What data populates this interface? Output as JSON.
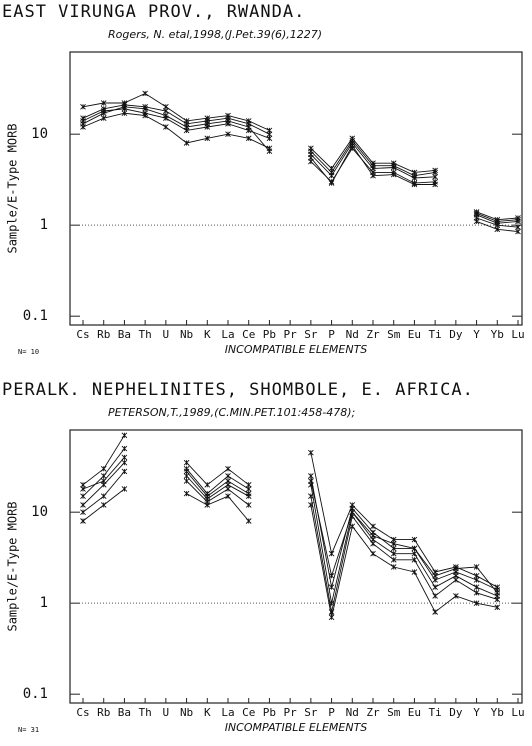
{
  "chart_data": [
    {
      "type": "line",
      "title": "EAST VIRUNGA PROV., RWANDA.",
      "subtitle": "Rogers, N. etal,1998,(J.Pet.39(6),1227)",
      "x_label": "INCOMPATIBLE ELEMENTS",
      "y_label": "Sample/E-Type MORB",
      "note": "N= 10",
      "categories": [
        "Cs",
        "Rb",
        "Ba",
        "Th",
        "U",
        "Nb",
        "K",
        "La",
        "Ce",
        "Pb",
        "Pr",
        "Sr",
        "P",
        "Nd",
        "Zr",
        "Sm",
        "Eu",
        "Ti",
        "Dy",
        "Y",
        "Yb",
        "Lu"
      ],
      "log_y": true,
      "ylim": [
        0.08,
        80
      ],
      "yticks": [
        0.1,
        1,
        10
      ],
      "reference_line": 1,
      "series": [
        {
          "color": "#111111",
          "values": [
            14,
            18,
            19,
            17,
            15,
            11,
            12,
            13,
            11,
            9,
            null,
            6,
            3.5,
            8,
            4.2,
            4.3,
            3.3,
            3.4,
            null,
            1.3,
            1.05,
            1.1
          ]
        },
        {
          "color": "#111111",
          "values": [
            20,
            22,
            22,
            28,
            20,
            14,
            15,
            16,
            14,
            11,
            null,
            7,
            4.2,
            9,
            4.8,
            4.8,
            3.8,
            4,
            null,
            1.4,
            1.15,
            1.2
          ]
        },
        {
          "color": "#111111",
          "values": [
            12,
            15,
            17,
            16,
            12,
            8,
            9,
            10,
            9,
            7,
            null,
            5,
            3,
            7,
            3.8,
            3.8,
            2.9,
            3,
            null,
            1.2,
            1,
            0.95
          ]
        },
        {
          "color": "#111111",
          "values": [
            13,
            17,
            20,
            19,
            16,
            12,
            13,
            14,
            12,
            6.5,
            null,
            5.5,
            2.9,
            7.5,
            3.5,
            3.6,
            2.8,
            2.8,
            null,
            1.1,
            0.9,
            0.85
          ]
        },
        {
          "color": "#111111",
          "values": [
            15,
            19,
            21,
            20,
            18,
            13,
            14,
            15,
            13,
            10,
            null,
            6.5,
            3.8,
            8.5,
            4.5,
            4.5,
            3.5,
            3.8,
            null,
            1.35,
            1.1,
            1.15
          ]
        }
      ]
    },
    {
      "type": "line",
      "title": "PERALK. NEPHELINITES, SHOMBOLE, E. AFRICA.",
      "subtitle": "PETERSON,T.,1989,(C.MIN.PET.101:458-478);",
      "x_label": "INCOMPATIBLE ELEMENTS",
      "y_label": "Sample/E-Type MORB",
      "note": "N= 31",
      "categories": [
        "Cs",
        "Rb",
        "Ba",
        "Th",
        "U",
        "Nb",
        "K",
        "La",
        "Ce",
        "Pb",
        "Pr",
        "Sr",
        "P",
        "Nd",
        "Zr",
        "Sm",
        "Eu",
        "Ti",
        "Dy",
        "Y",
        "Yb",
        "Lu"
      ],
      "log_y": true,
      "ylim": [
        0.08,
        80
      ],
      "yticks": [
        0.1,
        1,
        10
      ],
      "reference_line": 1,
      "series": [
        {
          "color": "#111111",
          "values": [
            20,
            30,
            70,
            null,
            null,
            35,
            20,
            30,
            20,
            null,
            null,
            45,
            3.5,
            12,
            7,
            5,
            5,
            2.2,
            2.5,
            2,
            1.5,
            null
          ]
        },
        {
          "color": "#111111",
          "values": [
            12,
            20,
            35,
            null,
            null,
            25,
            14,
            20,
            15,
            null,
            null,
            20,
            1,
            10,
            5,
            3.5,
            3.5,
            1.5,
            2,
            1.5,
            1.2,
            null
          ]
        },
        {
          "color": "#111111",
          "values": [
            10,
            15,
            28,
            null,
            null,
            22,
            13,
            18,
            12,
            null,
            null,
            15,
            0.8,
            9,
            4.5,
            3,
            3,
            1.2,
            1.8,
            1.3,
            1.1,
            null
          ]
        },
        {
          "color": "#111111",
          "values": [
            8,
            12,
            18,
            null,
            null,
            16,
            12,
            15,
            8,
            null,
            null,
            12,
            0.7,
            7,
            3.5,
            2.5,
            2.2,
            0.8,
            1.2,
            1,
            0.9,
            null
          ]
        },
        {
          "color": "#111111",
          "values": [
            15,
            25,
            50,
            null,
            null,
            30,
            16,
            25,
            18,
            null,
            null,
            25,
            1.5,
            11,
            6,
            4,
            4,
            1.8,
            2.2,
            1.8,
            1.4,
            null
          ]
        },
        {
          "color": "#111111",
          "values": [
            18,
            22,
            40,
            null,
            null,
            28,
            15,
            22,
            16,
            null,
            null,
            22,
            2,
            10,
            5.5,
            4.5,
            4,
            2,
            2.4,
            2.5,
            1.3,
            null
          ]
        }
      ]
    }
  ]
}
